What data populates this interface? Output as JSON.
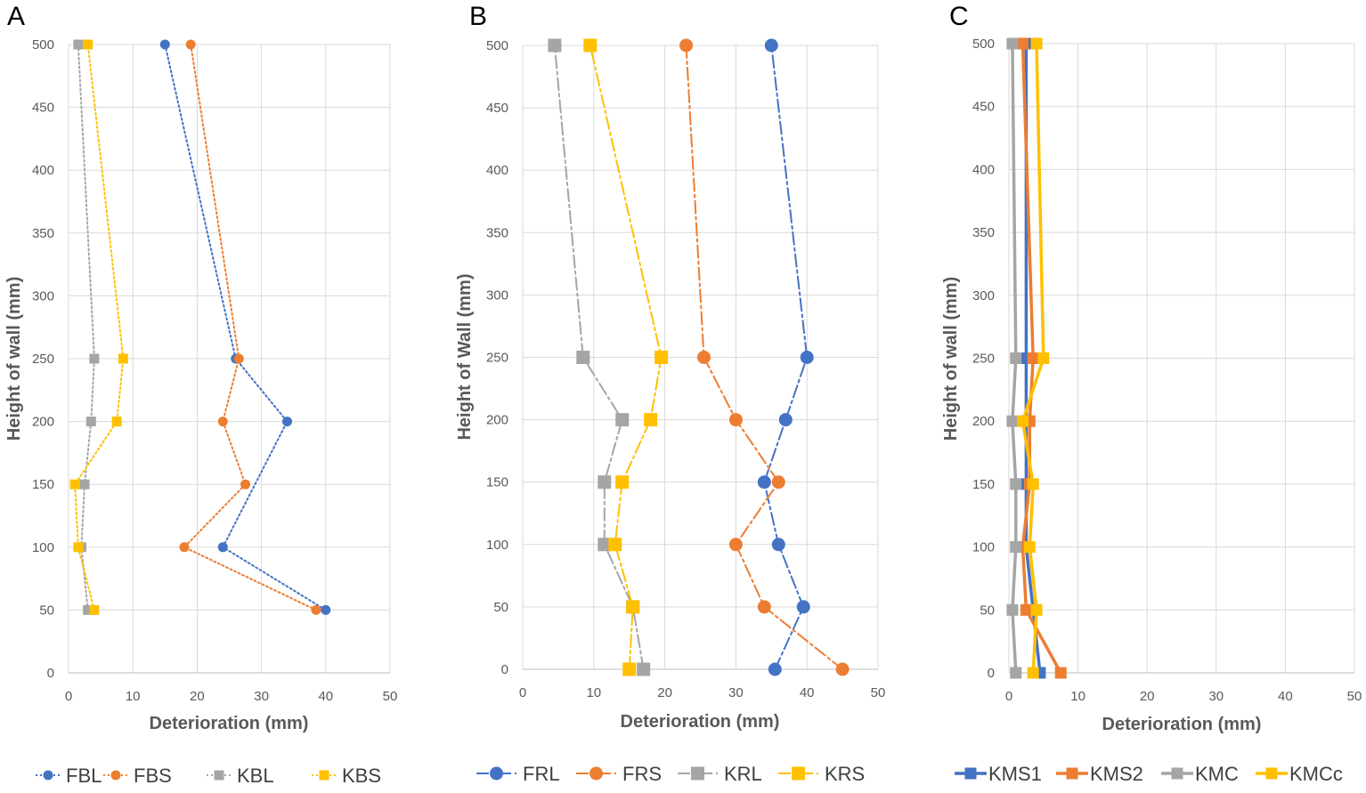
{
  "chart_data": [
    {
      "panel": "A",
      "type": "line",
      "xlabel": "Deterioration (mm)",
      "ylabel": "Height of wall (mm)",
      "xlim": [
        0,
        50
      ],
      "ylim": [
        0,
        500
      ],
      "x_ticks": [
        0,
        10,
        20,
        30,
        40,
        50
      ],
      "y_ticks": [
        0,
        50,
        100,
        150,
        200,
        250,
        300,
        350,
        400,
        450,
        500
      ],
      "grid": true,
      "legend": "bottom",
      "line_style": "dotted",
      "series": [
        {
          "name": "FBL",
          "color": "#4472C4",
          "marker": "circle",
          "x": [
            40,
            24,
            34,
            26,
            15
          ],
          "y": [
            50,
            100,
            200,
            250,
            500
          ]
        },
        {
          "name": "FBS",
          "color": "#ED7D31",
          "marker": "circle",
          "x": [
            38.5,
            18,
            27.5,
            24,
            26.5,
            19
          ],
          "y": [
            50,
            100,
            150,
            200,
            250,
            500
          ]
        },
        {
          "name": "KBL",
          "color": "#A5A5A5",
          "marker": "square",
          "x": [
            3,
            2,
            2.5,
            3.5,
            4,
            1.5
          ],
          "y": [
            50,
            100,
            150,
            200,
            250,
            500
          ]
        },
        {
          "name": "KBS",
          "color": "#FFC000",
          "marker": "square",
          "x": [
            4,
            1.5,
            1,
            7.5,
            8.5,
            3
          ],
          "y": [
            50,
            100,
            150,
            200,
            250,
            500
          ]
        }
      ]
    },
    {
      "panel": "B",
      "type": "line",
      "xlabel": "Deterioration (mm)",
      "ylabel": "Height of Wall (mm)",
      "xlim": [
        0,
        50
      ],
      "ylim": [
        0,
        500
      ],
      "x_ticks": [
        0,
        10,
        20,
        30,
        40,
        50
      ],
      "y_ticks": [
        0,
        50,
        100,
        150,
        200,
        250,
        300,
        350,
        400,
        450,
        500
      ],
      "grid": true,
      "legend": "bottom",
      "line_style": "dash-dot",
      "series": [
        {
          "name": "FRL",
          "color": "#4472C4",
          "marker": "circle",
          "x": [
            35.5,
            39.5,
            36,
            34,
            37,
            40,
            35
          ],
          "y": [
            0,
            50,
            100,
            150,
            200,
            250,
            500
          ]
        },
        {
          "name": "FRS",
          "color": "#ED7D31",
          "marker": "circle",
          "x": [
            45,
            34,
            30,
            36,
            30,
            25.5,
            23
          ],
          "y": [
            0,
            50,
            100,
            150,
            200,
            250,
            500
          ]
        },
        {
          "name": "KRL",
          "color": "#A5A5A5",
          "marker": "square",
          "x": [
            17,
            15.5,
            11.5,
            11.5,
            14,
            8.5,
            4.5
          ],
          "y": [
            0,
            50,
            100,
            150,
            200,
            250,
            500
          ]
        },
        {
          "name": "KRS",
          "color": "#FFC000",
          "marker": "square",
          "x": [
            15,
            15.5,
            13,
            14,
            18,
            19.5,
            9.5
          ],
          "y": [
            0,
            50,
            100,
            150,
            200,
            250,
            500
          ]
        }
      ]
    },
    {
      "panel": "C",
      "type": "line",
      "xlabel": "Deterioration (mm)",
      "ylabel": "Height of wall (mm)",
      "xlim": [
        0,
        50
      ],
      "ylim": [
        0,
        500
      ],
      "x_ticks": [
        0,
        10,
        20,
        30,
        40,
        50
      ],
      "y_ticks": [
        0,
        50,
        100,
        150,
        200,
        250,
        300,
        350,
        400,
        450,
        500
      ],
      "grid": true,
      "legend": "bottom",
      "line_style": "solid",
      "series": [
        {
          "name": "KMS1",
          "color": "#4472C4",
          "marker": "square",
          "x": [
            4.5,
            3.5,
            2.5,
            2.5,
            2.5,
            2.5,
            2.5
          ],
          "y": [
            0,
            50,
            100,
            150,
            200,
            250,
            500
          ]
        },
        {
          "name": "KMS2",
          "color": "#ED7D31",
          "marker": "square",
          "x": [
            7.5,
            2.5,
            2,
            3,
            3,
            3.5,
            2
          ],
          "y": [
            0,
            50,
            100,
            150,
            200,
            250,
            500
          ]
        },
        {
          "name": "KMC",
          "color": "#A5A5A5",
          "marker": "square",
          "x": [
            1,
            0.5,
            1,
            1,
            0.5,
            1,
            0.5
          ],
          "y": [
            0,
            50,
            100,
            150,
            200,
            250,
            500
          ]
        },
        {
          "name": "KMCc",
          "color": "#FFC000",
          "marker": "square",
          "x": [
            3.5,
            4,
            3,
            3.5,
            2,
            5,
            4
          ],
          "y": [
            0,
            50,
            100,
            150,
            200,
            250,
            500
          ]
        }
      ]
    }
  ]
}
